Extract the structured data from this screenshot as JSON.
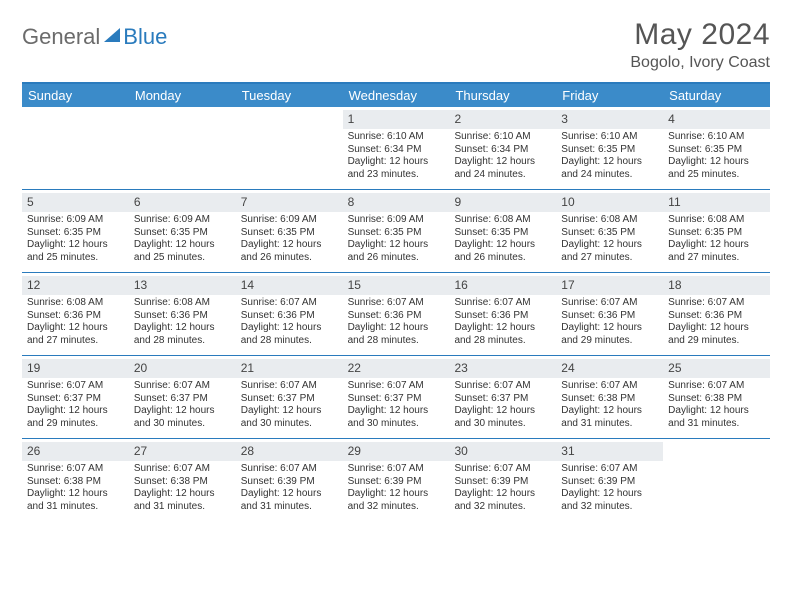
{
  "brand": {
    "part1": "General",
    "part2": "Blue"
  },
  "title": "May 2024",
  "location": "Bogolo, Ivory Coast",
  "colors": {
    "accent": "#3b8bc9",
    "accent_border": "#2a7bbd",
    "daynum_bg": "#e9ecef",
    "text": "#333333",
    "muted": "#555555"
  },
  "daysOfWeek": [
    "Sunday",
    "Monday",
    "Tuesday",
    "Wednesday",
    "Thursday",
    "Friday",
    "Saturday"
  ],
  "weeks": [
    [
      null,
      null,
      null,
      {
        "n": "1",
        "sr": "6:10 AM",
        "ss": "6:34 PM",
        "dl": "12 hours and 23 minutes."
      },
      {
        "n": "2",
        "sr": "6:10 AM",
        "ss": "6:34 PM",
        "dl": "12 hours and 24 minutes."
      },
      {
        "n": "3",
        "sr": "6:10 AM",
        "ss": "6:35 PM",
        "dl": "12 hours and 24 minutes."
      },
      {
        "n": "4",
        "sr": "6:10 AM",
        "ss": "6:35 PM",
        "dl": "12 hours and 25 minutes."
      }
    ],
    [
      {
        "n": "5",
        "sr": "6:09 AM",
        "ss": "6:35 PM",
        "dl": "12 hours and 25 minutes."
      },
      {
        "n": "6",
        "sr": "6:09 AM",
        "ss": "6:35 PM",
        "dl": "12 hours and 25 minutes."
      },
      {
        "n": "7",
        "sr": "6:09 AM",
        "ss": "6:35 PM",
        "dl": "12 hours and 26 minutes."
      },
      {
        "n": "8",
        "sr": "6:09 AM",
        "ss": "6:35 PM",
        "dl": "12 hours and 26 minutes."
      },
      {
        "n": "9",
        "sr": "6:08 AM",
        "ss": "6:35 PM",
        "dl": "12 hours and 26 minutes."
      },
      {
        "n": "10",
        "sr": "6:08 AM",
        "ss": "6:35 PM",
        "dl": "12 hours and 27 minutes."
      },
      {
        "n": "11",
        "sr": "6:08 AM",
        "ss": "6:35 PM",
        "dl": "12 hours and 27 minutes."
      }
    ],
    [
      {
        "n": "12",
        "sr": "6:08 AM",
        "ss": "6:36 PM",
        "dl": "12 hours and 27 minutes."
      },
      {
        "n": "13",
        "sr": "6:08 AM",
        "ss": "6:36 PM",
        "dl": "12 hours and 28 minutes."
      },
      {
        "n": "14",
        "sr": "6:07 AM",
        "ss": "6:36 PM",
        "dl": "12 hours and 28 minutes."
      },
      {
        "n": "15",
        "sr": "6:07 AM",
        "ss": "6:36 PM",
        "dl": "12 hours and 28 minutes."
      },
      {
        "n": "16",
        "sr": "6:07 AM",
        "ss": "6:36 PM",
        "dl": "12 hours and 28 minutes."
      },
      {
        "n": "17",
        "sr": "6:07 AM",
        "ss": "6:36 PM",
        "dl": "12 hours and 29 minutes."
      },
      {
        "n": "18",
        "sr": "6:07 AM",
        "ss": "6:36 PM",
        "dl": "12 hours and 29 minutes."
      }
    ],
    [
      {
        "n": "19",
        "sr": "6:07 AM",
        "ss": "6:37 PM",
        "dl": "12 hours and 29 minutes."
      },
      {
        "n": "20",
        "sr": "6:07 AM",
        "ss": "6:37 PM",
        "dl": "12 hours and 30 minutes."
      },
      {
        "n": "21",
        "sr": "6:07 AM",
        "ss": "6:37 PM",
        "dl": "12 hours and 30 minutes."
      },
      {
        "n": "22",
        "sr": "6:07 AM",
        "ss": "6:37 PM",
        "dl": "12 hours and 30 minutes."
      },
      {
        "n": "23",
        "sr": "6:07 AM",
        "ss": "6:37 PM",
        "dl": "12 hours and 30 minutes."
      },
      {
        "n": "24",
        "sr": "6:07 AM",
        "ss": "6:38 PM",
        "dl": "12 hours and 31 minutes."
      },
      {
        "n": "25",
        "sr": "6:07 AM",
        "ss": "6:38 PM",
        "dl": "12 hours and 31 minutes."
      }
    ],
    [
      {
        "n": "26",
        "sr": "6:07 AM",
        "ss": "6:38 PM",
        "dl": "12 hours and 31 minutes."
      },
      {
        "n": "27",
        "sr": "6:07 AM",
        "ss": "6:38 PM",
        "dl": "12 hours and 31 minutes."
      },
      {
        "n": "28",
        "sr": "6:07 AM",
        "ss": "6:39 PM",
        "dl": "12 hours and 31 minutes."
      },
      {
        "n": "29",
        "sr": "6:07 AM",
        "ss": "6:39 PM",
        "dl": "12 hours and 32 minutes."
      },
      {
        "n": "30",
        "sr": "6:07 AM",
        "ss": "6:39 PM",
        "dl": "12 hours and 32 minutes."
      },
      {
        "n": "31",
        "sr": "6:07 AM",
        "ss": "6:39 PM",
        "dl": "12 hours and 32 minutes."
      },
      null
    ]
  ],
  "labels": {
    "sunrise": "Sunrise:",
    "sunset": "Sunset:",
    "daylight": "Daylight:"
  }
}
